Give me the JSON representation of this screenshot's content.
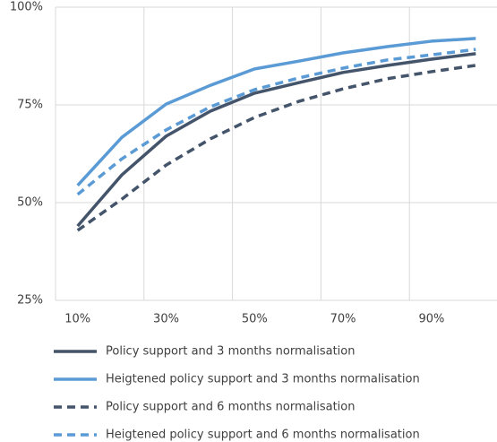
{
  "chart_data": {
    "type": "line",
    "categories": [
      "10%",
      null,
      "30%",
      null,
      "50%",
      null,
      "70%",
      null,
      "90%",
      null
    ],
    "ylim": [
      25,
      100
    ],
    "yticks": [
      {
        "value": 25,
        "label": "25%"
      },
      {
        "value": 50,
        "label": "50%"
      },
      {
        "value": 75,
        "label": "75%"
      },
      {
        "value": 100,
        "label": "100%"
      }
    ],
    "grid": true,
    "legend": "bottom",
    "series": [
      {
        "name": "Policy support and 3 months normalisation",
        "color": "#44546a",
        "dash": false,
        "values": [
          44.0,
          57.1,
          67.0,
          73.4,
          78.0,
          80.7,
          83.3,
          85.1,
          86.7,
          88.1
        ]
      },
      {
        "name": "Heigtened policy support and 3 months normalisation",
        "color": "#5b9bd5",
        "dash": false,
        "values": [
          54.4,
          66.7,
          75.2,
          80.0,
          84.2,
          86.2,
          88.3,
          89.9,
          91.3,
          92.0
        ]
      },
      {
        "name": "Policy support and 6 months normalisation",
        "color": "#44546a",
        "dash": true,
        "values": [
          42.9,
          50.9,
          59.6,
          66.3,
          71.8,
          75.9,
          79.1,
          81.7,
          83.5,
          85.1
        ]
      },
      {
        "name": "Heigtened policy support and 6 months normalisation",
        "color": "#5b9bd5",
        "dash": true,
        "values": [
          52.1,
          61.2,
          68.6,
          74.5,
          78.9,
          81.9,
          84.4,
          86.5,
          87.8,
          89.2
        ]
      }
    ]
  }
}
